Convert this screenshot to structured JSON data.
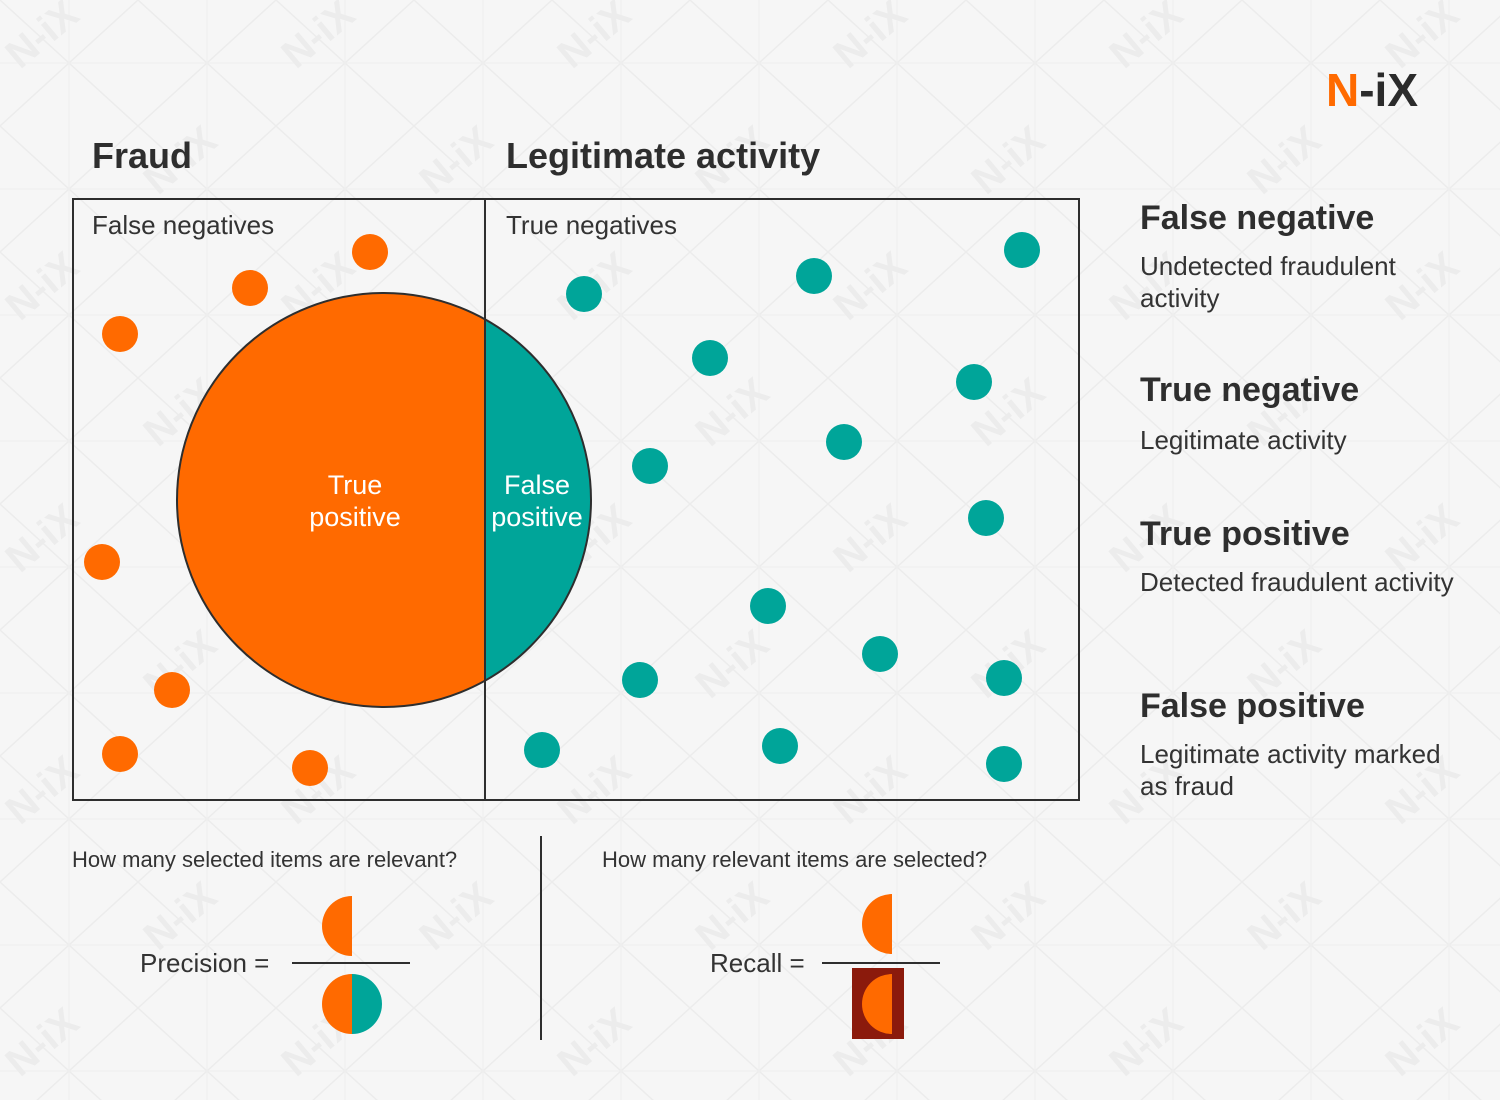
{
  "brand": {
    "logo_text_n": "N",
    "logo_text_rest": "-iX",
    "watermark": "N-iX",
    "accent": "#ff6a00",
    "teal": "#00a599",
    "dark_red": "#8b1a0c"
  },
  "headings": {
    "fraud": "Fraud",
    "legit": "Legitimate activity"
  },
  "panels": {
    "false_negatives": "False negatives",
    "true_negatives": "True negatives"
  },
  "circle": {
    "true_positive": [
      "True",
      "positive"
    ],
    "false_positive": [
      "False",
      "positive"
    ]
  },
  "legend": [
    {
      "title": "False negative",
      "desc": "Undetected fraudulent activity"
    },
    {
      "title": "True negative",
      "desc": "Legitimate activity"
    },
    {
      "title": "True positive",
      "desc": "Detected fraudulent activity"
    },
    {
      "title": "False positive",
      "desc": "Legitimate activity marked as fraud"
    }
  ],
  "formulas": {
    "precision_question": "How many selected items are relevant?",
    "precision_label": "Precision =",
    "recall_question": "How many relevant items are selected?",
    "recall_label": "Recall ="
  }
}
